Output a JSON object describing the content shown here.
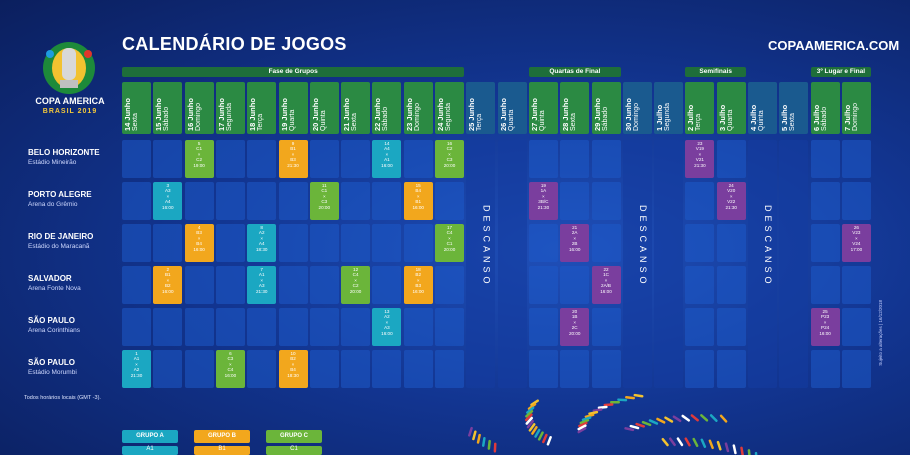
{
  "header": {
    "title": "CALENDÁRIO DE JOGOS",
    "site": "COPAAMERICA.COM",
    "brand": {
      "org": "CONMEBOL",
      "name": "COPA AMERICA",
      "sub": "BRASIL 2019"
    }
  },
  "phases": [
    {
      "label": "Fase de Grupos"
    },
    {
      "label": "Quartas de Final"
    },
    {
      "label": "Semifinais"
    },
    {
      "label": "3º Lugar e Final"
    }
  ],
  "days": [
    {
      "d": "14 Junho",
      "w": "Sexta"
    },
    {
      "d": "15 Junho",
      "w": "Sábado"
    },
    {
      "d": "16 Junho",
      "w": "Domingo"
    },
    {
      "d": "17 Junho",
      "w": "Segunda"
    },
    {
      "d": "18 Junho",
      "w": "Terça"
    },
    {
      "d": "19 Junho",
      "w": "Quarta"
    },
    {
      "d": "20 Junho",
      "w": "Quinta"
    },
    {
      "d": "21 Junho",
      "w": "Sexta"
    },
    {
      "d": "22 Junho",
      "w": "Sábado"
    },
    {
      "d": "23 Junho",
      "w": "Domingo"
    },
    {
      "d": "24 Junho",
      "w": "Segunda"
    },
    {
      "d": "25 Junho",
      "w": "Terça"
    },
    {
      "d": "26 Junho",
      "w": "Quarta"
    },
    {
      "d": "27 Junho",
      "w": "Quinta"
    },
    {
      "d": "28 Junho",
      "w": "Sexta"
    },
    {
      "d": "29 Junho",
      "w": "Sábado"
    },
    {
      "d": "30 Junho",
      "w": "Domingo"
    },
    {
      "d": "1 Julho",
      "w": "Segunda"
    },
    {
      "d": "2 Julho",
      "w": "Terça"
    },
    {
      "d": "3 Julho",
      "w": "Quarta"
    },
    {
      "d": "4 Julho",
      "w": "Quinta"
    },
    {
      "d": "5 Julho",
      "w": "Sexta"
    },
    {
      "d": "6 Julho",
      "w": "Sábado"
    },
    {
      "d": "7 Julho",
      "w": "Domingo"
    }
  ],
  "venues": [
    {
      "city": "BELO HORIZONTE",
      "stadium": "Estádio Mineirão"
    },
    {
      "city": "PORTO ALEGRE",
      "stadium": "Arena do Grêmio"
    },
    {
      "city": "RIO DE JANEIRO",
      "stadium": "Estádio do Maracanã"
    },
    {
      "city": "SALVADOR",
      "stadium": "Arena Fonte Nova"
    },
    {
      "city": "SÃO PAULO",
      "stadium": "Arena Corinthians"
    },
    {
      "city": "SÃO PAULO",
      "stadium": "Estádio Morumbi"
    }
  ],
  "rest_label": "DESCANSO",
  "matches": [
    {
      "row": 0,
      "col": 2,
      "g": "c",
      "no": "5",
      "a": "C1",
      "b": "C2",
      "t": "19:00"
    },
    {
      "row": 0,
      "col": 5,
      "g": "b",
      "no": "9",
      "a": "B1",
      "b": "B3",
      "t": "21:30"
    },
    {
      "row": 0,
      "col": 8,
      "g": "a",
      "no": "14",
      "a": "A4",
      "b": "A1",
      "t": "16:00"
    },
    {
      "row": 0,
      "col": 10,
      "g": "c",
      "no": "16",
      "a": "C2",
      "b": "C3",
      "t": "20:00"
    },
    {
      "row": 0,
      "col": 18,
      "g": "k",
      "no": "23",
      "a": "V19",
      "b": "V21",
      "t": "21:30"
    },
    {
      "row": 1,
      "col": 1,
      "g": "a",
      "no": "3",
      "a": "A3",
      "b": "A4",
      "t": "16:00"
    },
    {
      "row": 1,
      "col": 6,
      "g": "c",
      "no": "11",
      "a": "C1",
      "b": "C3",
      "t": "20:00"
    },
    {
      "row": 1,
      "col": 9,
      "g": "b",
      "no": "15",
      "a": "B4",
      "b": "B1",
      "t": "16:00"
    },
    {
      "row": 1,
      "col": 13,
      "g": "k",
      "no": "19",
      "a": "1A",
      "b": "3B/C",
      "t": "21:30"
    },
    {
      "row": 1,
      "col": 19,
      "g": "k",
      "no": "24",
      "a": "V20",
      "b": "V22",
      "t": "21:30"
    },
    {
      "row": 2,
      "col": 2,
      "g": "b",
      "no": "4",
      "a": "B3",
      "b": "B4",
      "t": "16:00"
    },
    {
      "row": 2,
      "col": 4,
      "g": "a",
      "no": "8",
      "a": "A2",
      "b": "A4",
      "t": "18:30"
    },
    {
      "row": 2,
      "col": 10,
      "g": "c",
      "no": "17",
      "a": "C4",
      "b": "C1",
      "t": "20:00"
    },
    {
      "row": 2,
      "col": 14,
      "g": "k",
      "no": "21",
      "a": "2A",
      "b": "2B",
      "t": "16:00"
    },
    {
      "row": 2,
      "col": 23,
      "g": "k",
      "no": "26",
      "a": "V23",
      "b": "V24",
      "t": "17:00"
    },
    {
      "row": 3,
      "col": 1,
      "g": "b",
      "no": "2",
      "a": "B1",
      "b": "B2",
      "t": "16:00"
    },
    {
      "row": 3,
      "col": 4,
      "g": "a",
      "no": "7",
      "a": "A1",
      "b": "A3",
      "t": "21:30"
    },
    {
      "row": 3,
      "col": 7,
      "g": "c",
      "no": "12",
      "a": "C4",
      "b": "C2",
      "t": "20:00"
    },
    {
      "row": 3,
      "col": 9,
      "g": "b",
      "no": "18",
      "a": "B2",
      "b": "B3",
      "t": "16:00"
    },
    {
      "row": 3,
      "col": 15,
      "g": "k",
      "no": "22",
      "a": "1C",
      "b": "2A/B",
      "t": "16:00"
    },
    {
      "row": 4,
      "col": 8,
      "g": "a",
      "no": "13",
      "a": "A2",
      "b": "A3",
      "t": "16:00"
    },
    {
      "row": 4,
      "col": 14,
      "g": "k",
      "no": "20",
      "a": "1B",
      "b": "2C",
      "t": "20:00"
    },
    {
      "row": 4,
      "col": 22,
      "g": "k",
      "no": "25",
      "a": "P23",
      "b": "P24",
      "t": "16:00"
    },
    {
      "row": 5,
      "col": 0,
      "g": "a",
      "no": "1",
      "a": "A1",
      "b": "A2",
      "t": "21:30"
    },
    {
      "row": 5,
      "col": 3,
      "g": "c",
      "no": "6",
      "a": "C3",
      "b": "C4",
      "t": "16:00"
    },
    {
      "row": 5,
      "col": 5,
      "g": "b",
      "no": "10",
      "a": "B2",
      "b": "B4",
      "t": "18:30"
    }
  ],
  "footnote": "Todos horários locais (GMT -3).",
  "side_note": "Sujeito a alterações | 16/12/2018",
  "groups": [
    {
      "label": "GRUPO A",
      "sub": "A1",
      "color": "#1ba7c2"
    },
    {
      "label": "GRUPO B",
      "sub": "B1",
      "color": "#f2a71d"
    },
    {
      "label": "GRUPO C",
      "sub": "C1",
      "color": "#6bb53a"
    }
  ]
}
